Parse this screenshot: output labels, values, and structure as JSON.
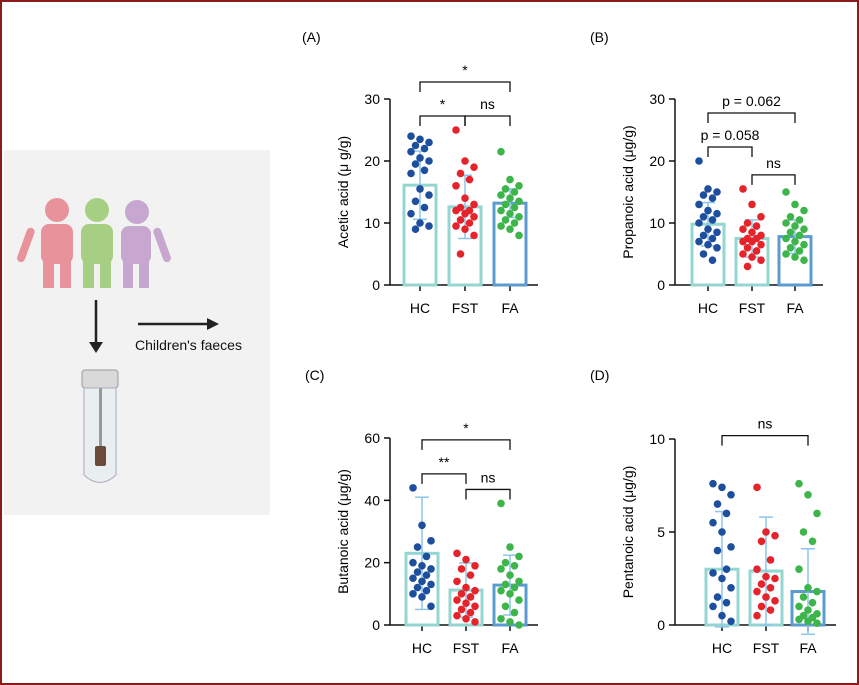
{
  "illustration": {
    "label": "Children's faeces"
  },
  "chart_data": [
    {
      "type": "bar",
      "panel": "(A)",
      "ylabel": "Acetic acid (μ g/g)",
      "categories": [
        "HC",
        "FST",
        "FA"
      ],
      "values": [
        16.1,
        12.6,
        13.2
      ],
      "errors": [
        5.5,
        5.1,
        2.3
      ],
      "points": [
        [
          24,
          23.5,
          23,
          22.5,
          22,
          21.5,
          20.5,
          20,
          19.5,
          18.5,
          18,
          15.5,
          14.5,
          13.5,
          12.5,
          11.5,
          10,
          9.5,
          9
        ],
        [
          25,
          20,
          19,
          18,
          17,
          16,
          14,
          13,
          12.5,
          12,
          12,
          11.5,
          11,
          10.5,
          10,
          9.5,
          9,
          8,
          5
        ],
        [
          21.5,
          17,
          16,
          15.5,
          15,
          14.5,
          14,
          13.5,
          13,
          12.5,
          12,
          11.5,
          11,
          10.5,
          10,
          9.5,
          9,
          8
        ]
      ],
      "colors": [
        "#1d4f9e",
        "#e5232a",
        "#3db54a"
      ],
      "bar_colors": [
        "#93d6d2",
        "#93d6d2",
        "#5b9bd0"
      ],
      "error_color": "#8dc6e8",
      "ylim": [
        0,
        30
      ],
      "yticks": [
        0,
        10,
        20,
        30
      ],
      "annotations": [
        {
          "text": "*",
          "between": [
            0,
            1
          ]
        },
        {
          "text": "ns",
          "between": [
            1,
            2
          ]
        },
        {
          "text": "*",
          "between": [
            0,
            2
          ]
        }
      ]
    },
    {
      "type": "bar",
      "panel": "(B)",
      "ylabel": "Propanoic acid (μg/g)",
      "categories": [
        "HC",
        "FST",
        "FA"
      ],
      "values": [
        9.8,
        7.5,
        7.8
      ],
      "errors": [
        3.5,
        3.0,
        2.7
      ],
      "points": [
        [
          20,
          15.5,
          15,
          14.5,
          14,
          13,
          12,
          11.5,
          11,
          10.5,
          10,
          9,
          8.5,
          8,
          7.5,
          7,
          6.5,
          6,
          5,
          4
        ],
        [
          15.5,
          13,
          11,
          10,
          9.5,
          9,
          8.5,
          8,
          7.5,
          7.5,
          7,
          7,
          6.5,
          6,
          5.5,
          5,
          4.5,
          4,
          3
        ],
        [
          15,
          13,
          12,
          11,
          10.5,
          10,
          9.5,
          9,
          8.5,
          8,
          7.5,
          7,
          6.5,
          6,
          5.5,
          5,
          4.5,
          4
        ]
      ],
      "colors": [
        "#1d4f9e",
        "#e5232a",
        "#3db54a"
      ],
      "bar_colors": [
        "#93d6d2",
        "#93d6d2",
        "#5b9bd0"
      ],
      "error_color": "#8dc6e8",
      "ylim": [
        0,
        30
      ],
      "yticks": [
        0,
        10,
        20,
        30
      ],
      "annotations": [
        {
          "text": "p = 0.058",
          "between": [
            0,
            1
          ]
        },
        {
          "text": "ns",
          "between": [
            1,
            2
          ]
        },
        {
          "text": "p = 0.062",
          "between": [
            0,
            2
          ]
        }
      ]
    },
    {
      "type": "bar",
      "panel": "(C)",
      "ylabel": "Butanoic acid (μg/g)",
      "categories": [
        "HC",
        "FST",
        "FA"
      ],
      "values": [
        23,
        11.2,
        12.8
      ],
      "errors": [
        18,
        8.7,
        9.6
      ],
      "points": [
        [
          44,
          32,
          27,
          25,
          22,
          20,
          19,
          18,
          17,
          16,
          15,
          14,
          13,
          12,
          11,
          10,
          9,
          6
        ],
        [
          23,
          21,
          19,
          18,
          16,
          14,
          12,
          11,
          10,
          9,
          8,
          7,
          6,
          5,
          4,
          3,
          2,
          1
        ],
        [
          39,
          25,
          22,
          20,
          19,
          18,
          16,
          14,
          13,
          12,
          11,
          10,
          8,
          6,
          4,
          2,
          1,
          0
        ]
      ],
      "colors": [
        "#1d4f9e",
        "#e5232a",
        "#3db54a"
      ],
      "bar_colors": [
        "#93d6d2",
        "#93d6d2",
        "#5b9bd0"
      ],
      "error_color": "#8dc6e8",
      "ylim": [
        0,
        60
      ],
      "yticks": [
        0,
        20,
        40,
        60
      ],
      "annotations": [
        {
          "text": "**",
          "between": [
            0,
            1
          ]
        },
        {
          "text": "ns",
          "between": [
            1,
            2
          ]
        },
        {
          "text": "*",
          "between": [
            0,
            2
          ]
        }
      ]
    },
    {
      "type": "bar",
      "panel": "(D)",
      "ylabel": "Pentanoic acid (μg/g)",
      "categories": [
        "HC",
        "FST",
        "FA"
      ],
      "values": [
        3.0,
        2.9,
        1.8
      ],
      "errors": [
        3.1,
        2.9,
        2.3
      ],
      "points": [
        [
          7.6,
          7.4,
          7,
          6.5,
          6,
          5.5,
          5,
          4.2,
          4,
          3,
          2.8,
          2.5,
          2,
          1.5,
          1.2,
          1,
          0.5,
          0.2
        ],
        [
          7.4,
          5,
          4.8,
          4.5,
          3.5,
          3,
          2.6,
          2.5,
          2.2,
          2,
          1.8,
          1.5,
          1.3,
          1,
          0.8,
          0.5
        ],
        [
          7.6,
          7,
          6,
          5,
          4.5,
          3,
          2,
          1.8,
          1.5,
          1.2,
          1,
          0.8,
          0.6,
          0.5,
          0.4,
          0.3,
          0.2,
          0.1
        ]
      ],
      "colors": [
        "#1d4f9e",
        "#e5232a",
        "#3db54a"
      ],
      "bar_colors": [
        "#93d6d2",
        "#93d6d2",
        "#5b9bd0"
      ],
      "error_color": "#8dc6e8",
      "ylim": [
        0,
        10
      ],
      "yticks": [
        0,
        5,
        10
      ],
      "annotations": [
        {
          "text": "ns",
          "between": [
            0,
            2
          ]
        }
      ]
    }
  ]
}
